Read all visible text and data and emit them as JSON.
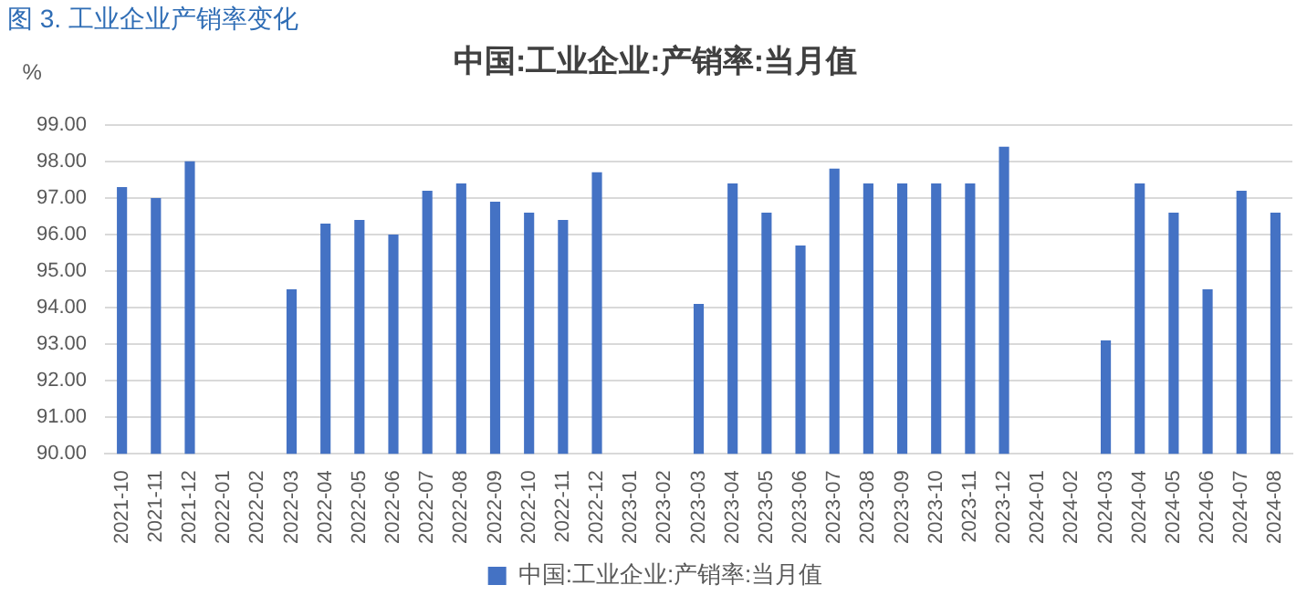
{
  "chart_data": {
    "type": "bar",
    "title": "中国:工业企业:产销率:当月值",
    "ylabel": "%",
    "annotations": [
      "图 3.  工业企业产销率变化"
    ],
    "categories": [
      "2021-10",
      "2021-11",
      "2021-12",
      "2022-01",
      "2022-02",
      "2022-03",
      "2022-04",
      "2022-05",
      "2022-06",
      "2022-07",
      "2022-08",
      "2022-09",
      "2022-10",
      "2022-11",
      "2022-12",
      "2023-01",
      "2023-02",
      "2023-03",
      "2023-04",
      "2023-05",
      "2023-06",
      "2023-07",
      "2023-08",
      "2023-09",
      "2023-10",
      "2023-11",
      "2023-12",
      "2024-01",
      "2024-02",
      "2024-03",
      "2024-04",
      "2024-05",
      "2024-06",
      "2024-07",
      "2024-08"
    ],
    "series": [
      {
        "name": "中国:工业企业:产销率:当月值",
        "color": "#4472c4",
        "values": [
          97.3,
          97.0,
          98.0,
          null,
          null,
          94.5,
          96.3,
          96.4,
          96.0,
          97.2,
          97.4,
          96.9,
          96.6,
          96.4,
          97.7,
          null,
          null,
          94.1,
          97.4,
          96.6,
          95.7,
          97.8,
          97.4,
          97.4,
          97.4,
          97.4,
          98.4,
          null,
          null,
          93.1,
          97.4,
          96.6,
          94.5,
          97.2,
          96.6
        ]
      }
    ],
    "ylim": [
      90,
      99
    ],
    "yticks": [
      {
        "value": 90,
        "label": "90.00"
      },
      {
        "value": 91,
        "label": "91.00"
      },
      {
        "value": 92,
        "label": "92.00"
      },
      {
        "value": 93,
        "label": "93.00"
      },
      {
        "value": 94,
        "label": "94.00"
      },
      {
        "value": 95,
        "label": "95.00"
      },
      {
        "value": 96,
        "label": "96.00"
      },
      {
        "value": 97,
        "label": "97.00"
      },
      {
        "value": 98,
        "label": "98.00"
      },
      {
        "value": 99,
        "label": "99.00"
      }
    ],
    "grid": "y",
    "legend": "bottom"
  }
}
